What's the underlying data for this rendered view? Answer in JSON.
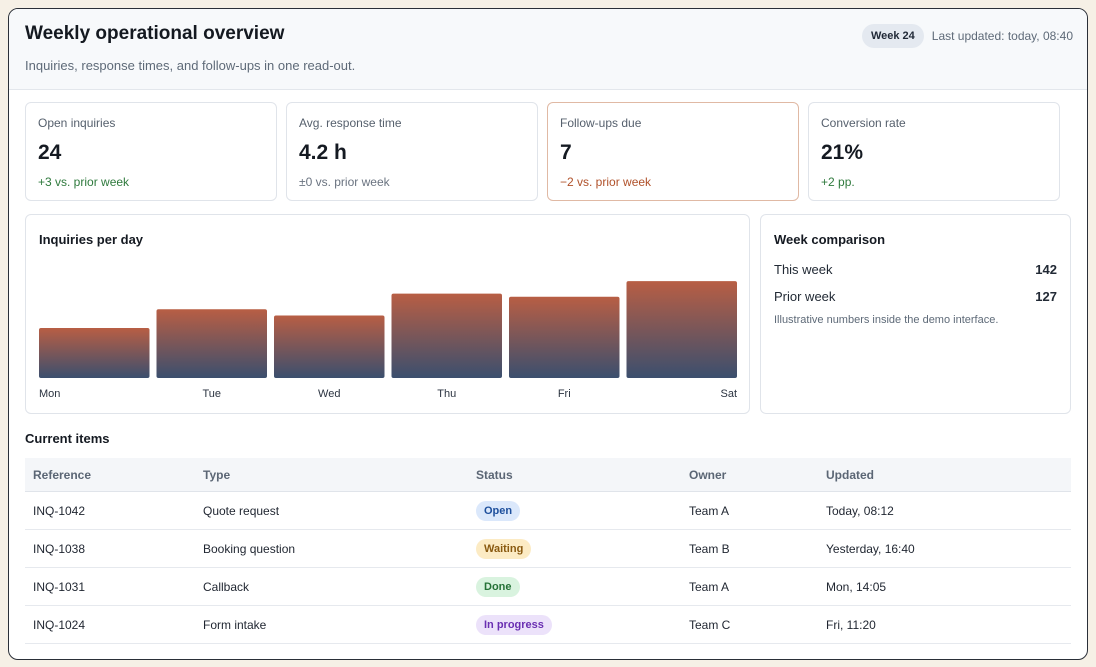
{
  "header": {
    "title": "Weekly operational overview",
    "subtitle": "Inquiries, response times, and follow-ups in one read-out.",
    "week_badge": "Week 24",
    "last_updated": "Last updated: today, 08:40"
  },
  "kpis": [
    {
      "label": "Open inquiries",
      "value": "24",
      "delta": "+3 vs. prior week",
      "trend": "up"
    },
    {
      "label": "Avg. response time",
      "value": "4.2 h",
      "delta": "±0 vs. prior week",
      "trend": "flat"
    },
    {
      "label": "Follow-ups due",
      "value": "7",
      "delta": "−2 vs. prior week",
      "trend": "down"
    },
    {
      "label": "Conversion rate",
      "value": "21%",
      "delta": "+2 pp.",
      "trend": "up"
    }
  ],
  "chart": {
    "title": "Inquiries per day"
  },
  "chart_data": {
    "type": "bar",
    "categories": [
      "Mon",
      "Tue",
      "Wed",
      "Thu",
      "Fri",
      "Sat"
    ],
    "values": [
      16,
      22,
      20,
      27,
      26,
      31
    ],
    "ylim": [
      0,
      32
    ],
    "grid": false,
    "colors": {
      "top": "#b85e44",
      "bottom": "#3b4f6e"
    }
  },
  "comparison": {
    "title": "Week comparison",
    "this_week_label": "This week",
    "this_week_value": "142",
    "prior_week_label": "Prior week",
    "prior_week_value": "127",
    "note": "Illustrative numbers inside the demo interface."
  },
  "items": {
    "title": "Current items",
    "columns": [
      "Reference",
      "Type",
      "Status",
      "Owner",
      "Updated"
    ],
    "rows": [
      {
        "ref": "INQ-1042",
        "type": "Quote request",
        "status": "Open",
        "owner": "Team A",
        "updated": "Today, 08:12"
      },
      {
        "ref": "INQ-1038",
        "type": "Booking question",
        "status": "Waiting",
        "owner": "Team B",
        "updated": "Yesterday, 16:40"
      },
      {
        "ref": "INQ-1031",
        "type": "Callback",
        "status": "Done",
        "owner": "Team A",
        "updated": "Mon, 14:05"
      },
      {
        "ref": "INQ-1024",
        "type": "Form intake",
        "status": "In progress",
        "owner": "Team C",
        "updated": "Fri, 11:20"
      }
    ]
  }
}
